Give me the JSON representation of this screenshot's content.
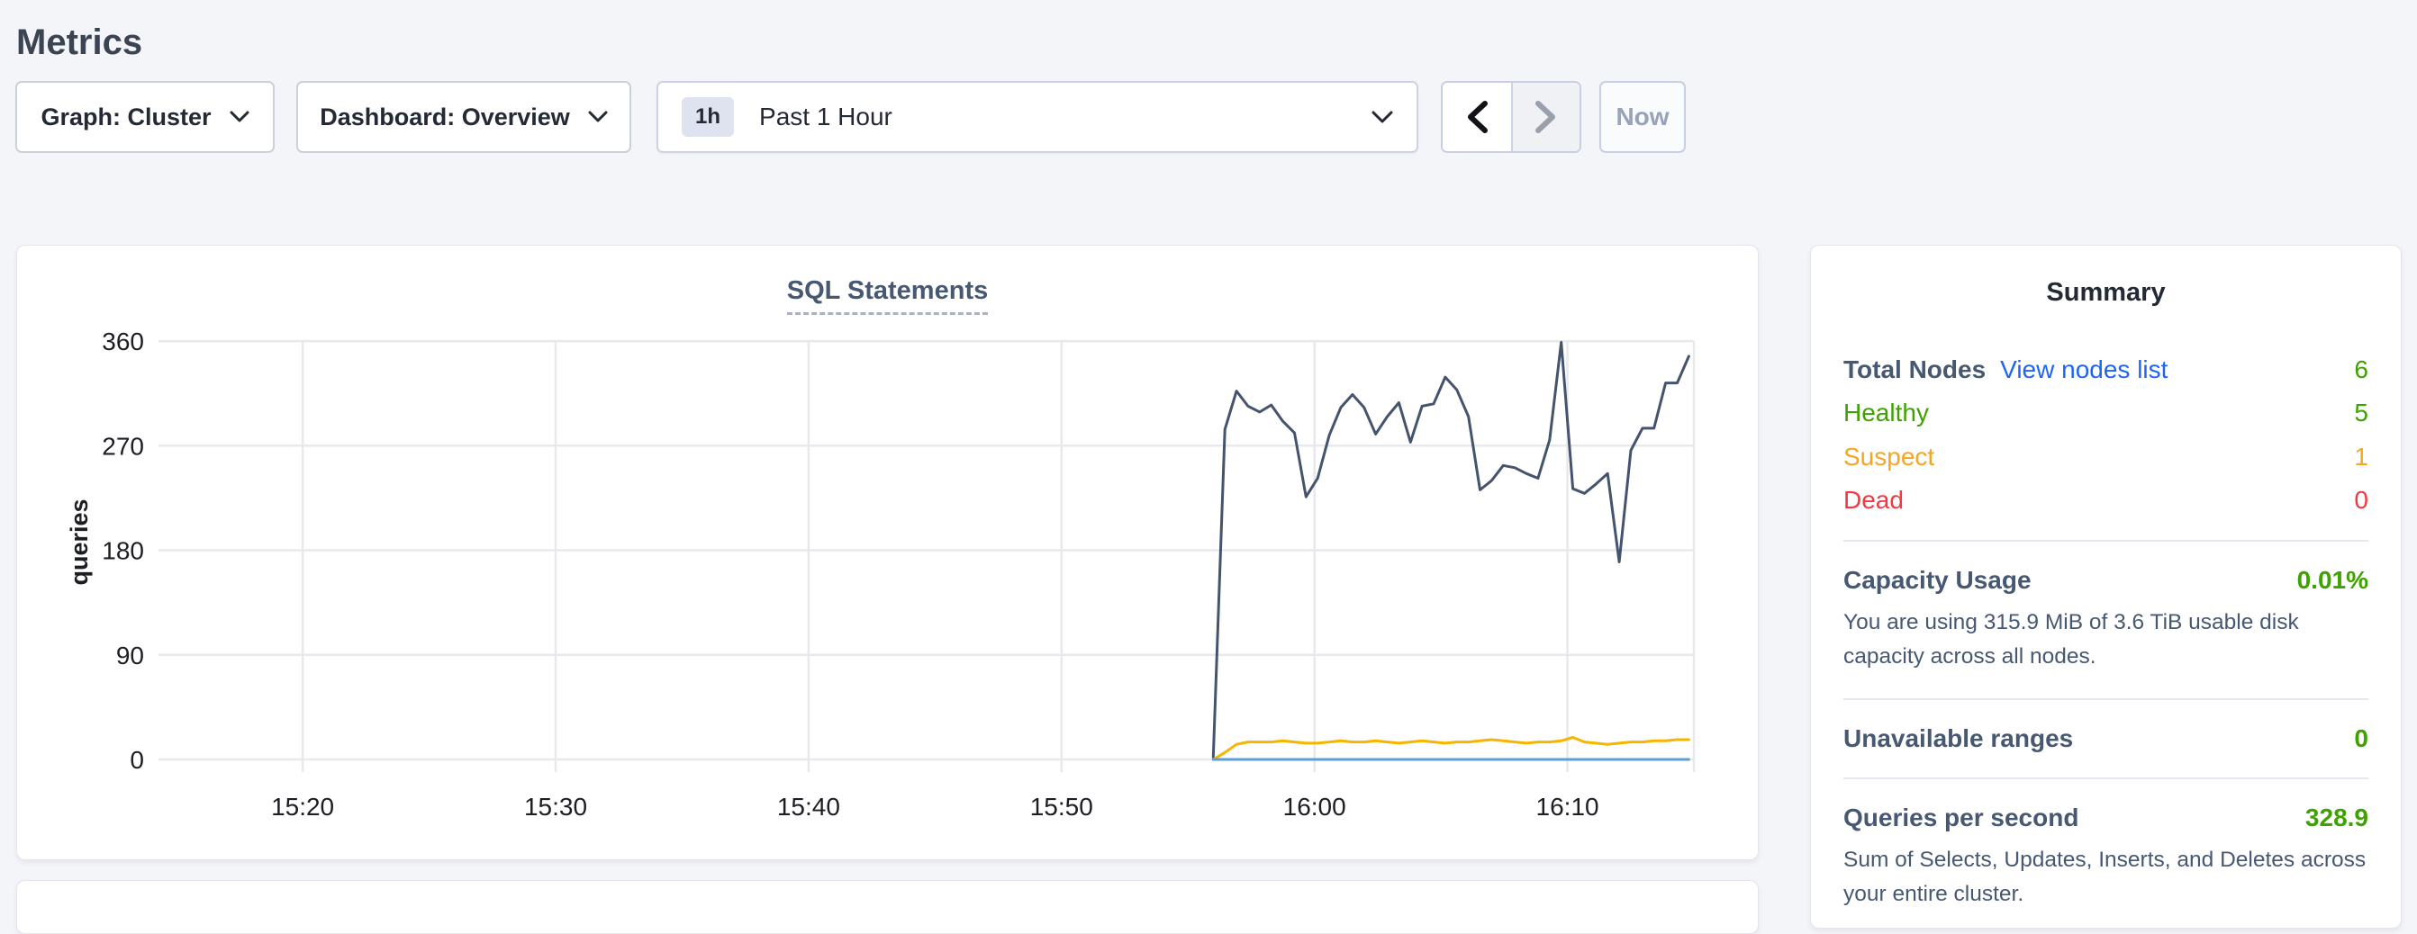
{
  "page": {
    "title": "Metrics"
  },
  "toolbar": {
    "graph_dropdown_label": "Graph: Cluster",
    "dashboard_dropdown_label": "Dashboard: Overview",
    "time_window_badge": "1h",
    "time_window_label": "Past 1 Hour",
    "now_label": "Now"
  },
  "chart_data": {
    "type": "line",
    "title": "SQL Statements",
    "ylabel": "queries",
    "grid": true,
    "legend_position": "none",
    "ylim": [
      0,
      374
    ],
    "yticks": [
      0,
      90,
      180,
      270,
      360
    ],
    "xlim_minutes": [
      914.3,
      975
    ],
    "xticks": [
      {
        "label": "15:20",
        "minute": 920
      },
      {
        "label": "15:30",
        "minute": 930
      },
      {
        "label": "15:40",
        "minute": 940
      },
      {
        "label": "15:50",
        "minute": 950
      },
      {
        "label": "16:00",
        "minute": 960
      },
      {
        "label": "16:10",
        "minute": 970
      }
    ],
    "series": [
      {
        "name": "queries-dark-blue",
        "color": "#44546e",
        "start_minute": 956.0,
        "end_minute": 974.8,
        "values": [
          2,
          284,
          317,
          304,
          299,
          305,
          291,
          281,
          226,
          242,
          279,
          303,
          314,
          303,
          280,
          295,
          307,
          273,
          304,
          306,
          329,
          318,
          295,
          232,
          240,
          253,
          251,
          246,
          242,
          275,
          359,
          233,
          229,
          237,
          246,
          170,
          266,
          285,
          285,
          324,
          324,
          347
        ]
      },
      {
        "name": "queries-yellow",
        "color": "#f7b500",
        "start_minute": 956.0,
        "end_minute": 974.8,
        "values": [
          0,
          6,
          13,
          15,
          15,
          15,
          16,
          15,
          14,
          14,
          15,
          16,
          15,
          15,
          16,
          15,
          14,
          15,
          16,
          15,
          14,
          15,
          15,
          16,
          17,
          16,
          15,
          14,
          15,
          15,
          16,
          19,
          15,
          14,
          13,
          14,
          15,
          15,
          16,
          16,
          17,
          17
        ]
      },
      {
        "name": "queries-light-blue",
        "color": "#5b9fd4",
        "start_minute": 956.0,
        "end_minute": 974.8,
        "values": [
          0,
          0,
          0,
          0,
          0,
          0,
          0,
          0,
          0,
          0,
          0,
          0,
          0,
          0,
          0,
          0,
          0,
          0,
          0,
          0,
          0,
          0,
          0,
          0,
          0,
          0,
          0,
          0,
          0,
          0,
          0,
          0,
          0,
          0,
          0,
          0,
          0,
          0,
          0,
          0,
          0,
          0
        ]
      }
    ]
  },
  "summary": {
    "title": "Summary",
    "total_nodes_label": "Total Nodes",
    "view_nodes_link": "View nodes list",
    "total_nodes_value": "6",
    "node_rows": [
      {
        "label": "Healthy",
        "value": "5"
      },
      {
        "label": "Suspect",
        "value": "1"
      },
      {
        "label": "Dead",
        "value": "0"
      }
    ],
    "capacity_label": "Capacity Usage",
    "capacity_value": "0.01%",
    "capacity_desc": "You are using 315.9 MiB of 3.6 TiB usable disk capacity across all nodes.",
    "unavailable_label": "Unavailable ranges",
    "unavailable_value": "0",
    "qps_label": "Queries per second",
    "qps_value": "328.9",
    "qps_desc": "Sum of Selects, Updates, Inserts, and Deletes across your entire cluster."
  },
  "colors": {
    "page_background": "#f4f5f9",
    "link_blue": "#2065f2",
    "healthy_green": "#3ea200",
    "suspect_orange": "#f5a623",
    "dead_red": "#f23841",
    "series_dark_blue": "#44546e",
    "series_yellow": "#f7b500",
    "series_light_blue": "#5b9fd4",
    "gridline": "#e8e9ec"
  }
}
